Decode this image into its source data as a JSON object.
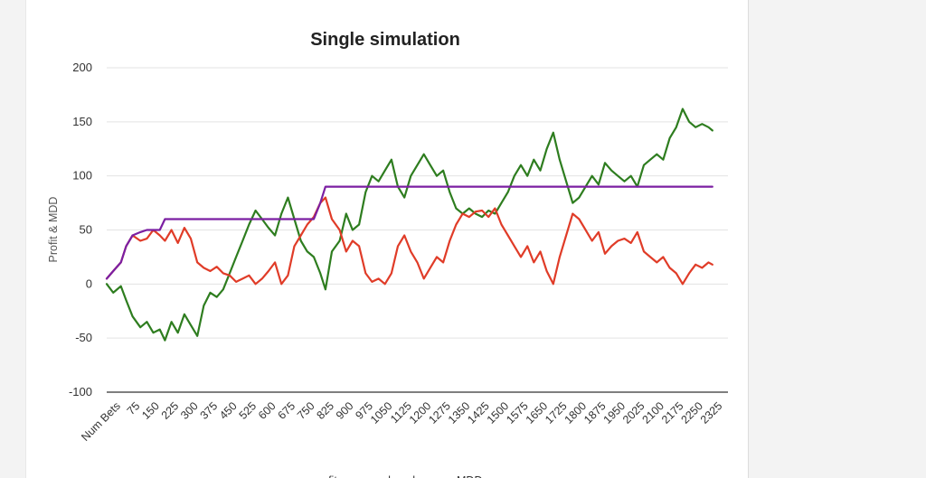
{
  "chart_data": {
    "type": "line",
    "title": "Single simulation",
    "ylabel": "Profit & MDD",
    "xlabel": "",
    "ylim": [
      -100,
      200
    ],
    "yticks": [
      -100,
      -50,
      0,
      50,
      100,
      150,
      200
    ],
    "xlim": [
      0,
      2400
    ],
    "x_tick_labels": [
      "Num Bets",
      "75",
      "150",
      "225",
      "300",
      "375",
      "450",
      "525",
      "600",
      "675",
      "750",
      "825",
      "900",
      "975",
      "1050",
      "1125",
      "1200",
      "1275",
      "1350",
      "1425",
      "1500",
      "1575",
      "1650",
      "1725",
      "1800",
      "1875",
      "1950",
      "2025",
      "2100",
      "2175",
      "2250",
      "2325"
    ],
    "grid": true,
    "legend": "bottom",
    "series": [
      {
        "name": "profit",
        "color": "#2e7d1f",
        "points": [
          [
            0,
            0
          ],
          [
            25,
            -8
          ],
          [
            55,
            -2
          ],
          [
            75,
            -15
          ],
          [
            100,
            -30
          ],
          [
            130,
            -40
          ],
          [
            155,
            -35
          ],
          [
            180,
            -45
          ],
          [
            205,
            -42
          ],
          [
            225,
            -52
          ],
          [
            250,
            -35
          ],
          [
            275,
            -45
          ],
          [
            300,
            -28
          ],
          [
            325,
            -38
          ],
          [
            350,
            -48
          ],
          [
            375,
            -20
          ],
          [
            400,
            -8
          ],
          [
            425,
            -12
          ],
          [
            450,
            -5
          ],
          [
            475,
            10
          ],
          [
            500,
            25
          ],
          [
            525,
            40
          ],
          [
            550,
            55
          ],
          [
            575,
            68
          ],
          [
            600,
            60
          ],
          [
            625,
            52
          ],
          [
            650,
            45
          ],
          [
            675,
            65
          ],
          [
            700,
            80
          ],
          [
            725,
            60
          ],
          [
            750,
            40
          ],
          [
            775,
            30
          ],
          [
            800,
            25
          ],
          [
            825,
            10
          ],
          [
            845,
            -5
          ],
          [
            870,
            30
          ],
          [
            900,
            40
          ],
          [
            925,
            65
          ],
          [
            950,
            50
          ],
          [
            975,
            55
          ],
          [
            1000,
            85
          ],
          [
            1025,
            100
          ],
          [
            1050,
            95
          ],
          [
            1075,
            105
          ],
          [
            1100,
            115
          ],
          [
            1125,
            90
          ],
          [
            1150,
            80
          ],
          [
            1175,
            100
          ],
          [
            1200,
            110
          ],
          [
            1225,
            120
          ],
          [
            1250,
            110
          ],
          [
            1275,
            100
          ],
          [
            1300,
            105
          ],
          [
            1325,
            85
          ],
          [
            1350,
            70
          ],
          [
            1375,
            65
          ],
          [
            1400,
            70
          ],
          [
            1425,
            65
          ],
          [
            1450,
            62
          ],
          [
            1475,
            68
          ],
          [
            1500,
            65
          ],
          [
            1525,
            75
          ],
          [
            1550,
            85
          ],
          [
            1575,
            100
          ],
          [
            1600,
            110
          ],
          [
            1625,
            100
          ],
          [
            1650,
            115
          ],
          [
            1675,
            105
          ],
          [
            1700,
            125
          ],
          [
            1725,
            140
          ],
          [
            1750,
            115
          ],
          [
            1775,
            95
          ],
          [
            1800,
            75
          ],
          [
            1825,
            80
          ],
          [
            1850,
            90
          ],
          [
            1875,
            100
          ],
          [
            1900,
            92
          ],
          [
            1925,
            112
          ],
          [
            1950,
            105
          ],
          [
            1975,
            100
          ],
          [
            2000,
            95
          ],
          [
            2025,
            100
          ],
          [
            2050,
            90
          ],
          [
            2075,
            110
          ],
          [
            2100,
            115
          ],
          [
            2125,
            120
          ],
          [
            2150,
            115
          ],
          [
            2175,
            135
          ],
          [
            2200,
            145
          ],
          [
            2225,
            162
          ],
          [
            2250,
            150
          ],
          [
            2275,
            145
          ],
          [
            2300,
            148
          ],
          [
            2325,
            145
          ],
          [
            2340,
            142
          ]
        ]
      },
      {
        "name": "drawdown",
        "color": "#e03c28",
        "points": [
          [
            0,
            5
          ],
          [
            25,
            12
          ],
          [
            55,
            20
          ],
          [
            75,
            35
          ],
          [
            100,
            45
          ],
          [
            130,
            40
          ],
          [
            155,
            42
          ],
          [
            180,
            50
          ],
          [
            205,
            45
          ],
          [
            225,
            40
          ],
          [
            250,
            50
          ],
          [
            275,
            38
          ],
          [
            300,
            52
          ],
          [
            325,
            42
          ],
          [
            350,
            20
          ],
          [
            375,
            15
          ],
          [
            400,
            12
          ],
          [
            425,
            16
          ],
          [
            450,
            10
          ],
          [
            475,
            8
          ],
          [
            500,
            2
          ],
          [
            525,
            5
          ],
          [
            550,
            8
          ],
          [
            575,
            0
          ],
          [
            600,
            5
          ],
          [
            625,
            12
          ],
          [
            650,
            20
          ],
          [
            675,
            0
          ],
          [
            700,
            8
          ],
          [
            725,
            35
          ],
          [
            750,
            45
          ],
          [
            775,
            55
          ],
          [
            800,
            62
          ],
          [
            825,
            75
          ],
          [
            845,
            80
          ],
          [
            870,
            60
          ],
          [
            900,
            50
          ],
          [
            925,
            30
          ],
          [
            950,
            40
          ],
          [
            975,
            35
          ],
          [
            1000,
            10
          ],
          [
            1025,
            2
          ],
          [
            1050,
            5
          ],
          [
            1075,
            0
          ],
          [
            1100,
            10
          ],
          [
            1125,
            35
          ],
          [
            1150,
            45
          ],
          [
            1175,
            30
          ],
          [
            1200,
            20
          ],
          [
            1225,
            5
          ],
          [
            1250,
            15
          ],
          [
            1275,
            25
          ],
          [
            1300,
            20
          ],
          [
            1325,
            40
          ],
          [
            1350,
            55
          ],
          [
            1375,
            65
          ],
          [
            1400,
            62
          ],
          [
            1425,
            67
          ],
          [
            1450,
            68
          ],
          [
            1475,
            62
          ],
          [
            1500,
            70
          ],
          [
            1525,
            55
          ],
          [
            1550,
            45
          ],
          [
            1575,
            35
          ],
          [
            1600,
            25
          ],
          [
            1625,
            35
          ],
          [
            1650,
            20
          ],
          [
            1675,
            30
          ],
          [
            1700,
            12
          ],
          [
            1725,
            0
          ],
          [
            1750,
            25
          ],
          [
            1775,
            45
          ],
          [
            1800,
            65
          ],
          [
            1825,
            60
          ],
          [
            1850,
            50
          ],
          [
            1875,
            40
          ],
          [
            1900,
            48
          ],
          [
            1925,
            28
          ],
          [
            1950,
            35
          ],
          [
            1975,
            40
          ],
          [
            2000,
            42
          ],
          [
            2025,
            38
          ],
          [
            2050,
            48
          ],
          [
            2075,
            30
          ],
          [
            2100,
            25
          ],
          [
            2125,
            20
          ],
          [
            2150,
            25
          ],
          [
            2175,
            15
          ],
          [
            2200,
            10
          ],
          [
            2225,
            0
          ],
          [
            2250,
            10
          ],
          [
            2275,
            18
          ],
          [
            2300,
            15
          ],
          [
            2325,
            20
          ],
          [
            2340,
            18
          ]
        ]
      },
      {
        "name": "MDD",
        "color": "#7b1fa2",
        "points": [
          [
            0,
            5
          ],
          [
            25,
            12
          ],
          [
            55,
            20
          ],
          [
            75,
            35
          ],
          [
            100,
            45
          ],
          [
            130,
            48
          ],
          [
            155,
            50
          ],
          [
            205,
            50
          ],
          [
            225,
            60
          ],
          [
            800,
            60
          ],
          [
            825,
            75
          ],
          [
            845,
            90
          ],
          [
            2340,
            90
          ]
        ]
      }
    ]
  }
}
